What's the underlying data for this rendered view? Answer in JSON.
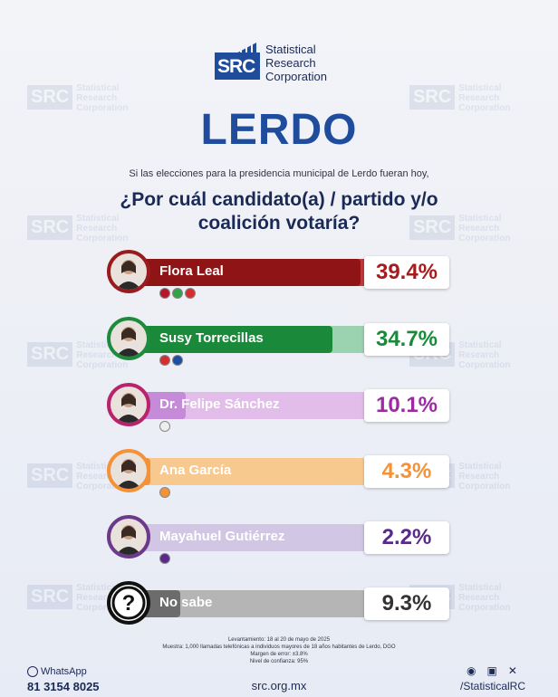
{
  "brand": {
    "logo_text": "SRC",
    "name_line1": "Statistical",
    "name_line2": "Research",
    "name_line3": "Corporation"
  },
  "title": "LERDO",
  "intro": "Si las elecciones para la presidencia municipal de Lerdo fueran hoy,",
  "question_line1": "¿Por cuál candidato(a) / partido y/o",
  "question_line2": "coalición votaría?",
  "chart_data": {
    "type": "bar",
    "categories": [
      "Flora Leal",
      "Susy Torrecillas",
      "Dr. Felipe Sánchez",
      "Ana García",
      "Mayahuel Gutiérrez",
      "No sabe"
    ],
    "values": [
      39.4,
      34.7,
      10.1,
      4.3,
      2.2,
      9.3
    ],
    "labels": [
      "39.4%",
      "34.7%",
      "10.1%",
      "4.3%",
      "2.2%",
      "9.3%"
    ],
    "colors": [
      "#8e1416",
      "#1a8a3a",
      "#c58ad8",
      "#f39237",
      "#a896c9",
      "#6c6c6c"
    ],
    "light_colors": [
      "#c23a3a",
      "#9bd2b0",
      "#e2bde9",
      "#f7c98f",
      "#d1c6e3",
      "#b5b5b5"
    ],
    "ring_colors": [
      "#9a1b1e",
      "#1d8a3c",
      "#b8236b",
      "#f39237",
      "#6b3a8a",
      "#111111"
    ],
    "pct_colors": [
      "#a51c1f",
      "#1a8a3a",
      "#9b2aa3",
      "#f39237",
      "#5a2a8a",
      "#333333"
    ],
    "xlim": [
      0,
      40
    ]
  },
  "parties": [
    [
      "morena",
      "pvem",
      "PT"
    ],
    [
      "PRI",
      "PAN"
    ],
    [
      ""
    ],
    [
      "mc"
    ],
    [
      "PES"
    ],
    []
  ],
  "footer": {
    "line1": "Levantamiento: 18 al 20 de mayo de 2025",
    "line2": "Muestra: 1,000 llamadas telefónicas a individuos mayores de 18 años habitantes de Lerdo, DGO",
    "line3": "Margen de error: ±3.8%",
    "line4": "Nivel de confianza: 95%",
    "whatsapp_label": "WhatsApp",
    "whatsapp_number": "81 3154 8025",
    "website": "src.org.mx",
    "handle": "/StatisticalRC",
    "social_icons": [
      "facebook-icon",
      "instagram-icon",
      "x-icon"
    ]
  }
}
